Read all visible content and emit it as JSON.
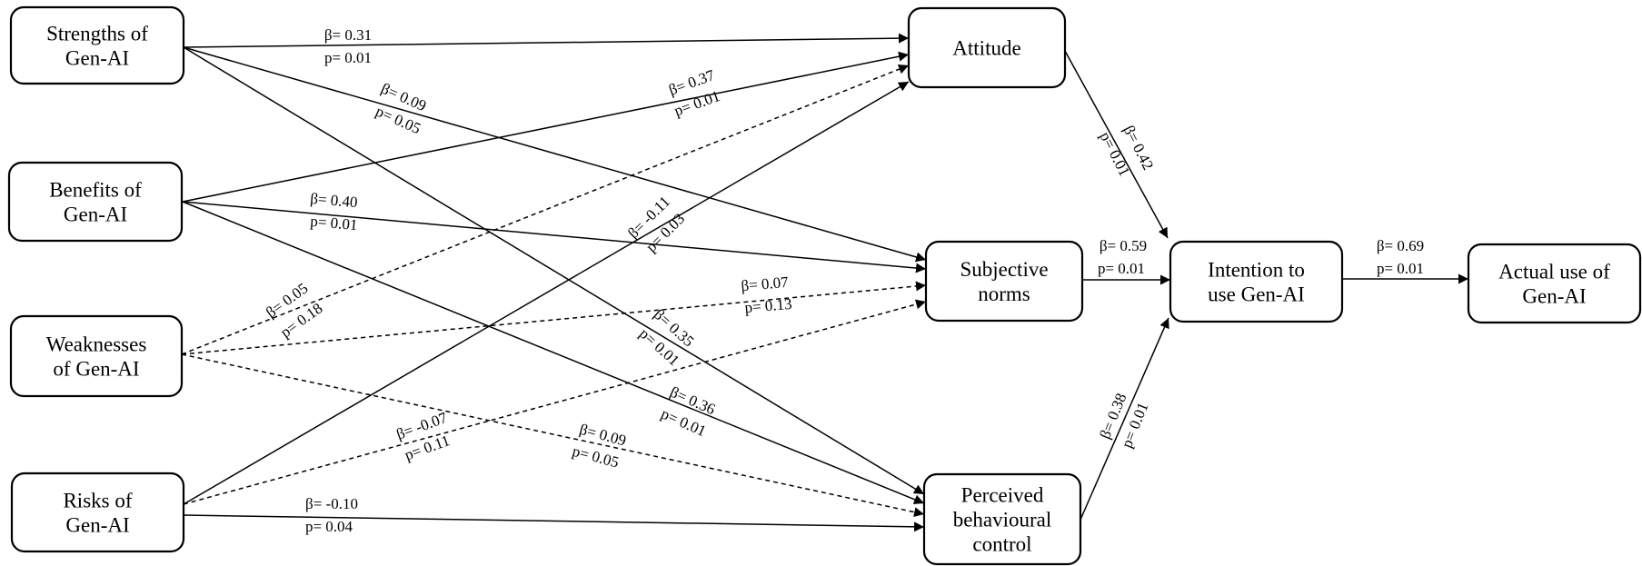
{
  "nodes": {
    "strengths": [
      "Strengths of",
      "Gen-AI"
    ],
    "benefits": [
      "Benefits of",
      "Gen-AI"
    ],
    "weaknesses": [
      "Weaknesses",
      "of Gen-AI"
    ],
    "risks": [
      "Risks of",
      "Gen-AI"
    ],
    "attitude": [
      "Attitude"
    ],
    "subjective_norms": [
      "Subjective",
      "norms"
    ],
    "pbc": [
      "Perceived",
      "behavioural",
      "control"
    ],
    "intention": [
      "Intention to",
      "use Gen-AI"
    ],
    "actual_use": [
      "Actual use of",
      "Gen-AI"
    ]
  },
  "edges": [
    {
      "from": "strengths",
      "to": "attitude",
      "beta": "β= 0.31",
      "p": "p= 0.01",
      "style": "solid"
    },
    {
      "from": "strengths",
      "to": "subjective_norms",
      "beta": "β= 0.09",
      "p": "p= 0.05",
      "style": "solid"
    },
    {
      "from": "strengths",
      "to": "pbc",
      "beta": "β= 0.35",
      "p": "p= 0.01",
      "style": "solid"
    },
    {
      "from": "benefits",
      "to": "attitude",
      "beta": "β= 0.37",
      "p": "p= 0.01",
      "style": "solid"
    },
    {
      "from": "benefits",
      "to": "subjective_norms",
      "beta": "β= 0.40",
      "p": "p= 0.01",
      "style": "solid"
    },
    {
      "from": "benefits",
      "to": "pbc",
      "beta": "β= 0.36",
      "p": "p= 0.01",
      "style": "solid"
    },
    {
      "from": "weaknesses",
      "to": "attitude",
      "beta": "β= 0.05",
      "p": "p= 0.18",
      "style": "dashed"
    },
    {
      "from": "weaknesses",
      "to": "subjective_norms",
      "beta": "β= 0.07",
      "p": "p= 0.13",
      "style": "dashed"
    },
    {
      "from": "weaknesses",
      "to": "pbc",
      "beta": "β= 0.09",
      "p": "p= 0.05",
      "style": "dashed"
    },
    {
      "from": "risks",
      "to": "attitude",
      "beta": "β= -0.11",
      "p": "p= 0.03",
      "style": "solid"
    },
    {
      "from": "risks",
      "to": "subjective_norms",
      "beta": "β= -0.07",
      "p": "p= 0.11",
      "style": "dashed"
    },
    {
      "from": "risks",
      "to": "pbc",
      "beta": "β= -0.10",
      "p": "p= 0.04",
      "style": "solid"
    },
    {
      "from": "attitude",
      "to": "intention",
      "beta": "β= 0.42",
      "p": "p= 0.01",
      "style": "solid"
    },
    {
      "from": "subjective_norms",
      "to": "intention",
      "beta": "β= 0.59",
      "p": "p= 0.01",
      "style": "solid"
    },
    {
      "from": "pbc",
      "to": "intention",
      "beta": "β= 0.38",
      "p": "p= 0.01",
      "style": "solid"
    },
    {
      "from": "intention",
      "to": "actual_use",
      "beta": "β= 0.69",
      "p": "p= 0.01",
      "style": "solid"
    }
  ]
}
